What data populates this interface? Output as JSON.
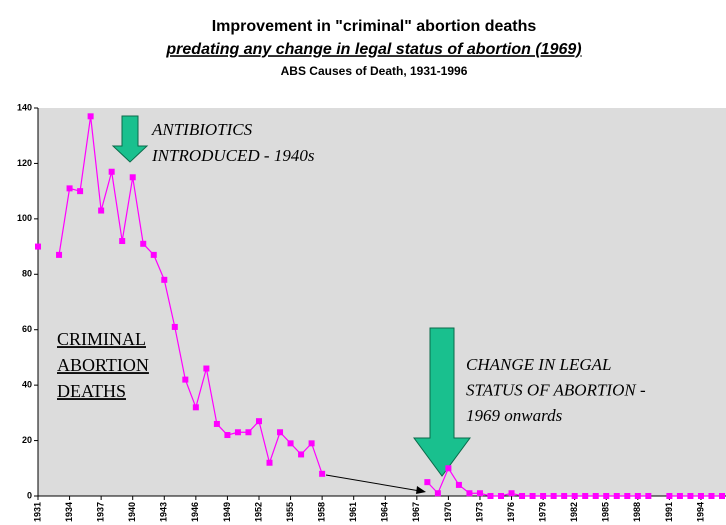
{
  "chart_data": {
    "type": "line",
    "title": "Improvement in \"criminal\" abortion deaths",
    "subtitle": "predating any change in legal status of abortion (1969)",
    "source": "ABS Causes of Death, 1931-1996",
    "x": [
      1931,
      1932,
      1933,
      1934,
      1935,
      1936,
      1937,
      1938,
      1939,
      1940,
      1941,
      1942,
      1943,
      1944,
      1945,
      1946,
      1947,
      1948,
      1949,
      1950,
      1951,
      1952,
      1953,
      1954,
      1955,
      1956,
      1957,
      1958,
      1959,
      1960,
      1961,
      1962,
      1963,
      1964,
      1965,
      1966,
      1967,
      1968,
      1969,
      1970,
      1971,
      1972,
      1973,
      1974,
      1975,
      1976,
      1977,
      1978,
      1979,
      1980,
      1981,
      1982,
      1983,
      1984,
      1985,
      1986,
      1987,
      1988,
      1989,
      1990,
      1991,
      1992,
      1993,
      1994,
      1995,
      1996
    ],
    "series": [
      {
        "name": "Criminal abortion deaths",
        "color": "#ff00ff",
        "values": [
          90,
          null,
          87,
          111,
          110,
          137,
          103,
          117,
          92,
          115,
          91,
          87,
          78,
          61,
          42,
          32,
          46,
          26,
          22,
          23,
          23,
          27,
          12,
          23,
          19,
          15,
          19,
          8,
          null,
          null,
          null,
          null,
          null,
          null,
          null,
          null,
          null,
          5,
          1,
          10,
          4,
          1,
          1,
          0,
          0,
          1,
          0,
          0,
          0,
          0,
          0,
          0,
          0,
          0,
          0,
          0,
          0,
          0,
          0,
          null,
          0,
          0,
          0,
          0,
          0,
          0
        ]
      }
    ],
    "xlim": [
      1931,
      1996
    ],
    "xticks": [
      1931,
      1934,
      1937,
      1940,
      1943,
      1946,
      1949,
      1952,
      1955,
      1958,
      1961,
      1964,
      1967,
      1970,
      1973,
      1976,
      1979,
      1982,
      1985,
      1988,
      1991,
      1994
    ],
    "ylim": [
      0,
      140
    ],
    "yticks": [
      0,
      20,
      40,
      60,
      80,
      100,
      120,
      140
    ],
    "annotations": [
      {
        "lines": [
          "ANTIBIOTICS",
          "INTRODUCED - 1940s"
        ]
      },
      {
        "lines": [
          "CRIMINAL",
          "ABORTION",
          "DEATHS"
        ]
      },
      {
        "lines": [
          "CHANGE IN LEGAL",
          "STATUS OF ABORTION -",
          "1969 onwards"
        ]
      }
    ]
  }
}
